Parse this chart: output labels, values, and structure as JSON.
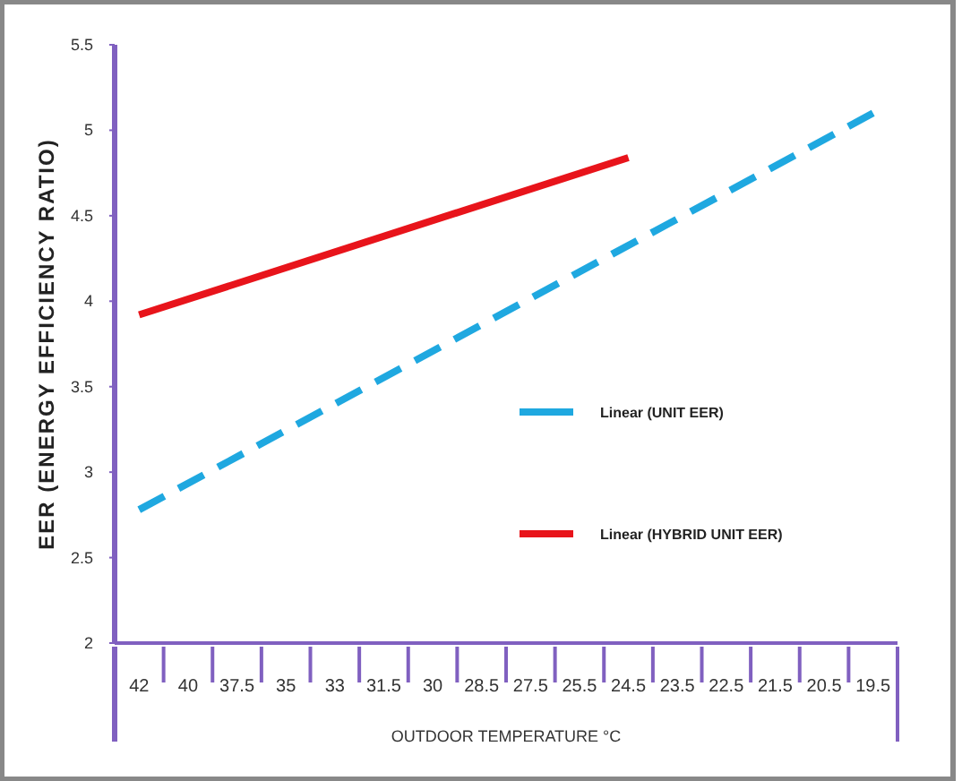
{
  "chart_data": {
    "type": "line",
    "ylabel": "EER (ENERGY EFFICIENCY RATIO)",
    "xlabel": "OUTDOOR TEMPERATURE  °C",
    "categories": [
      "42",
      "40",
      "37.5",
      "35",
      "33",
      "31.5",
      "30",
      "28.5",
      "27.5",
      "25.5",
      "24.5",
      "23.5",
      "22.5",
      "21.5",
      "20.5",
      "19.5"
    ],
    "series": [
      {
        "name": "Linear (UNIT EER)",
        "color": "#1fa8e0",
        "line_style": "dashed",
        "x": [
          "42",
          "19.5"
        ],
        "values": [
          2.78,
          5.1
        ]
      },
      {
        "name": "Linear (HYBRID UNIT EER)",
        "color": "#e8141b",
        "line_style": "solid",
        "x": [
          "42",
          "24.5"
        ],
        "values": [
          3.92,
          4.84
        ]
      }
    ],
    "ylim": [
      2,
      5.5
    ],
    "yticks": [
      2,
      2.5,
      3,
      3.5,
      4,
      4.5,
      5,
      5.5
    ],
    "legend": "right",
    "grid": false
  }
}
